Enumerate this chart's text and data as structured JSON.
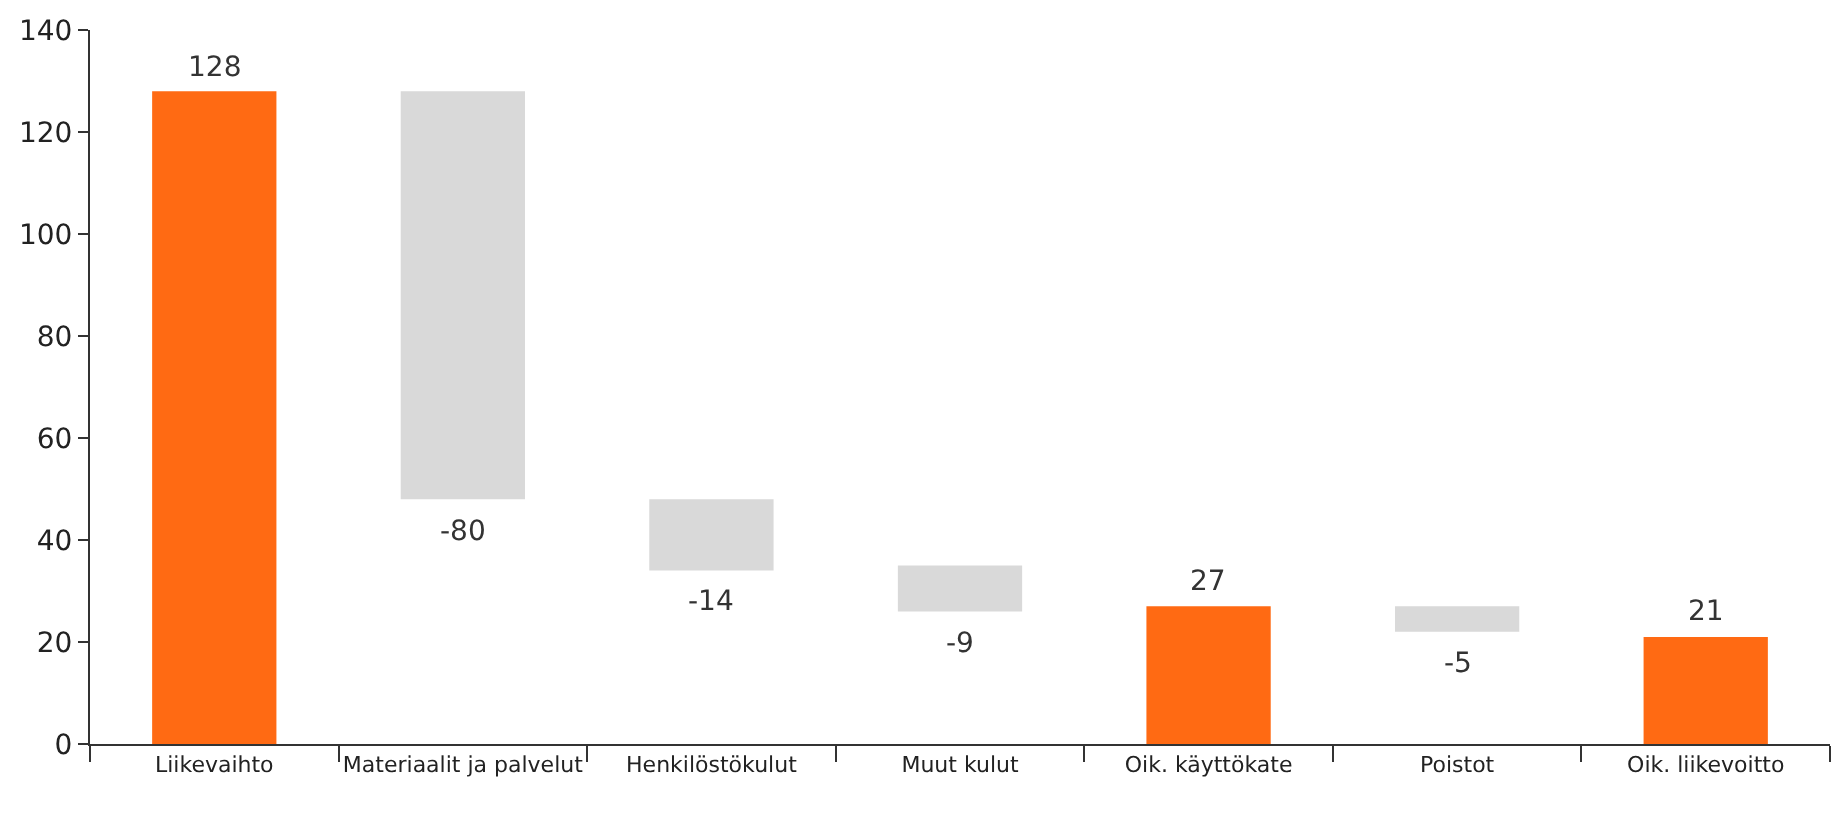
{
  "chart_data": {
    "type": "bar",
    "categories": [
      "Liikevaihto",
      "Materiaalit ja palvelut",
      "Henkilöstökulut",
      "Muut kulut",
      "Oik. käyttökate",
      "Poistot",
      "Oik. liikevoitto"
    ],
    "values": [
      128,
      -80,
      -14,
      -9,
      27,
      -5,
      21
    ],
    "base": [
      0,
      128,
      48,
      35,
      0,
      27,
      0
    ],
    "colors": [
      "#ff6a13",
      "#d9d9d9",
      "#d9d9d9",
      "#d9d9d9",
      "#ff6a13",
      "#d9d9d9",
      "#ff6a13"
    ],
    "ylim": [
      0,
      140
    ],
    "yticks": [
      0,
      20,
      40,
      60,
      80,
      100,
      120,
      140
    ],
    "data_labels": true
  }
}
